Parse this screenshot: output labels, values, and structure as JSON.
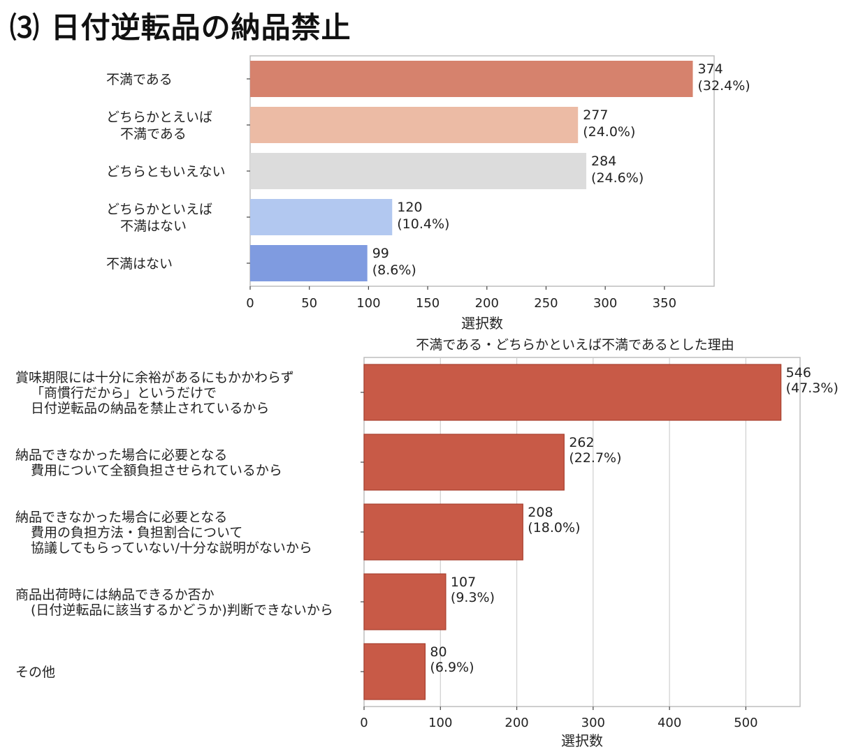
{
  "page": {
    "title": "⑶ 日付逆転品の納品禁止"
  },
  "chart_data": [
    {
      "type": "bar",
      "orientation": "horizontal",
      "title": "",
      "xlabel": "選択数",
      "ylabel": "",
      "xlim": [
        0,
        392
      ],
      "xticks": [
        0,
        50,
        100,
        150,
        200,
        250,
        300,
        350
      ],
      "grid": false,
      "categories": [
        [
          "不満である"
        ],
        [
          "どちらかとえいば",
          "不満である"
        ],
        [
          "どちらともいえない"
        ],
        [
          "どちらかといえば",
          "不満はない"
        ],
        [
          "不満はない"
        ]
      ],
      "values": [
        374,
        277,
        284,
        120,
        99
      ],
      "value_labels": [
        [
          "374",
          "(32.4%)"
        ],
        [
          "277",
          "(24.0%)"
        ],
        [
          "284",
          "(24.6%)"
        ],
        [
          "120",
          "(10.4%)"
        ],
        [
          "99",
          "(8.6%)"
        ]
      ],
      "colors": [
        "#d6826d",
        "#ecbba5",
        "#dcdcdc",
        "#b2c8f0",
        "#7f9be0"
      ]
    },
    {
      "type": "bar",
      "orientation": "horizontal",
      "title": "不満である・どちらかといえば不満であるとした理由",
      "xlabel": "選択数",
      "ylabel": "",
      "xlim": [
        0,
        571
      ],
      "xticks": [
        0,
        100,
        200,
        300,
        400,
        500
      ],
      "grid": true,
      "categories": [
        [
          "賞味期限には十分に余裕があるにもかかわらず",
          "「商慣行だから」というだけで",
          "日付逆転品の納品を禁止されているから"
        ],
        [
          "納品できなかった場合に必要となる",
          "費用について全額負担させられているから"
        ],
        [
          "納品できなかった場合に必要となる",
          "費用の負担方法・負担割合について",
          "協議してもらっていない/十分な説明がないから"
        ],
        [
          "商品出荷時には納品できるか否か",
          "(日付逆転品に該当するかどうか)判断できないから"
        ],
        [
          "その他"
        ]
      ],
      "values": [
        546,
        262,
        208,
        107,
        80
      ],
      "value_labels": [
        [
          "546",
          "(47.3%)"
        ],
        [
          "262",
          "(22.7%)"
        ],
        [
          "208",
          "(18.0%)"
        ],
        [
          "107",
          "(9.3%)"
        ],
        [
          "80",
          "(6.9%)"
        ]
      ],
      "colors": [
        "#c85a47",
        "#c85a47",
        "#c85a47",
        "#c85a47",
        "#c85a47"
      ]
    }
  ]
}
